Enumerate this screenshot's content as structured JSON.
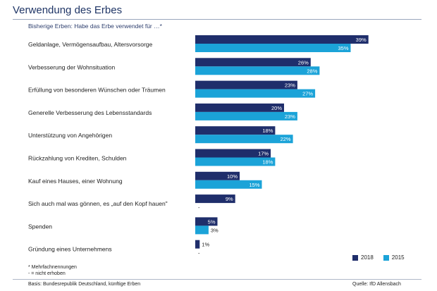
{
  "header": {
    "title": "Verwendung des Erbes",
    "subtitle": "Bisherige Erben: Habe das Erbe verwendet für …*"
  },
  "colors": {
    "y2018": "#1f2e6b",
    "y2015": "#1ba3d8"
  },
  "chart_data": {
    "type": "bar",
    "orientation": "horizontal",
    "categories": [
      "Geldanlage, Vermögensaufbau, Altersvorsorge",
      "Verbesserung der Wohnsituation",
      "Erfüllung von besonderen Wünschen oder Träumen",
      "Generelle Verbesserung des Lebensstandards",
      "Unterstützung von Angehörigen",
      "Rückzahlung von Krediten, Schulden",
      "Kauf eines Hauses, einer Wohnung",
      "Sich auch mal was gönnen, es „auf den Kopf hauen\"",
      "Spenden",
      "Gründung eines Unternehmens"
    ],
    "series": [
      {
        "name": "2018",
        "values": [
          39,
          26,
          23,
          20,
          18,
          17,
          10,
          9,
          5,
          1
        ],
        "labels": [
          "39%",
          "26%",
          "23%",
          "20%",
          "18%",
          "17%",
          "10%",
          "9%",
          "5%",
          "1%"
        ]
      },
      {
        "name": "2015",
        "values": [
          35,
          28,
          27,
          23,
          22,
          18,
          15,
          null,
          3,
          null
        ],
        "labels": [
          "35%",
          "28%",
          "27%",
          "23%",
          "22%",
          "18%",
          "15%",
          "-",
          "3%",
          "-"
        ]
      }
    ],
    "xlim": [
      0,
      40
    ],
    "legend_position": "bottom-right"
  },
  "notes": {
    "note1": "* Mehrfachnennungen",
    "note2": "- = nicht erhoben"
  },
  "footer": {
    "basis": "Basis: Bundesrepublik Deutschland, künftige Erben",
    "source": "Quelle: IfD Allensbach"
  }
}
